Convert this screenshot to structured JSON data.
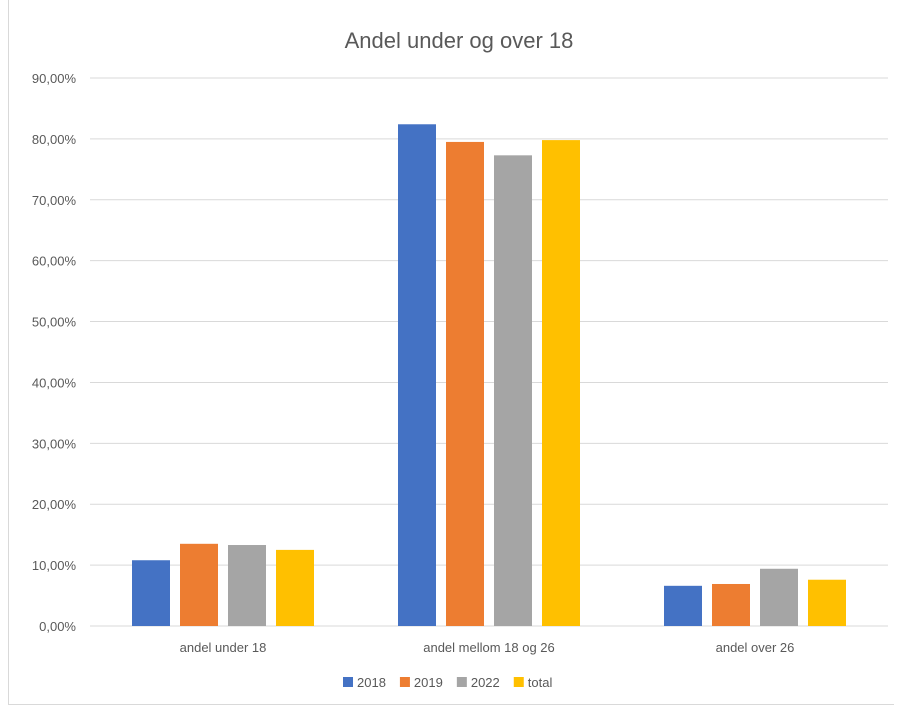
{
  "chart_data": {
    "type": "bar",
    "title": "Andel under og over 18",
    "xlabel": "",
    "ylabel": "",
    "categories": [
      "andel under 18",
      "andel mellom 18 og 26",
      "andel over 26"
    ],
    "series": [
      {
        "name": "2018",
        "color": "#4472C4",
        "values": [
          10.8,
          82.4,
          6.6
        ]
      },
      {
        "name": "2019",
        "color": "#ED7D31",
        "values": [
          13.5,
          79.5,
          6.9
        ]
      },
      {
        "name": "2022",
        "color": "#A5A5A5",
        "values": [
          13.3,
          77.3,
          9.4
        ]
      },
      {
        "name": "total",
        "color": "#FFC000",
        "values": [
          12.5,
          79.8,
          7.6
        ]
      }
    ],
    "ylim": [
      0,
      90
    ],
    "ytick_labels": [
      "0,00%",
      "10,00%",
      "20,00%",
      "30,00%",
      "40,00%",
      "50,00%",
      "60,00%",
      "70,00%",
      "80,00%",
      "90,00%"
    ],
    "grid": true,
    "legend_position": "bottom"
  }
}
